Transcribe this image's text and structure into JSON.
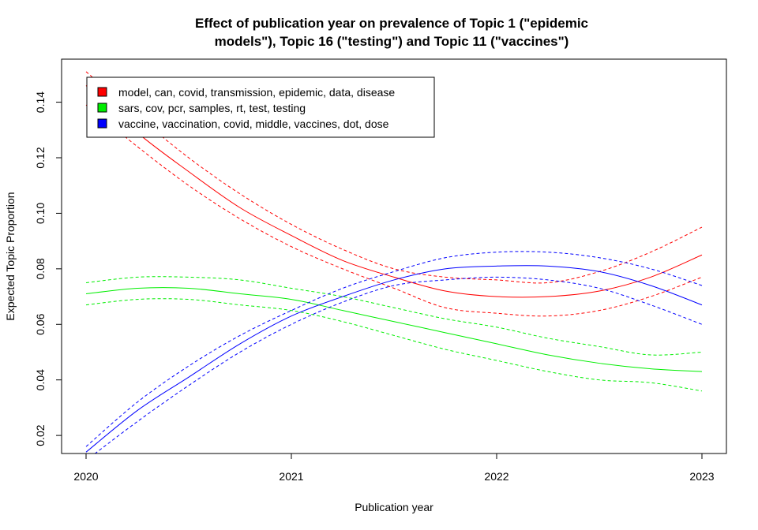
{
  "chart_data": {
    "type": "line",
    "title_lines": [
      "Effect of publication year on prevalence of Topic 1 (\"epidemic",
      "models\"), Topic 16 (\"testing\") and Topic 11 (\"vaccines\")"
    ],
    "xlabel": "Publication year",
    "ylabel": "Expected Topic Proportion",
    "xlim": [
      2020,
      2023
    ],
    "ylim": [
      0.0135,
      0.1555
    ],
    "x_ticks": [
      "2020",
      "2021",
      "2022",
      "2023"
    ],
    "y_ticks": [
      "0.02",
      "0.04",
      "0.06",
      "0.08",
      "0.10",
      "0.12",
      "0.14"
    ],
    "legend_position": "top-left",
    "series": [
      {
        "name": "model, can, covid, transmission, epidemic, data, disease",
        "color": "#ff0000",
        "x": [
          2020,
          2020.25,
          2020.5,
          2020.75,
          2021,
          2021.25,
          2021.5,
          2021.75,
          2022,
          2022.25,
          2022.5,
          2022.75,
          2023
        ],
        "y": [
          0.146,
          0.129,
          0.115,
          0.102,
          0.092,
          0.083,
          0.077,
          0.072,
          0.07,
          0.07,
          0.072,
          0.077,
          0.085
        ],
        "lower": [
          0.139,
          0.124,
          0.11,
          0.098,
          0.088,
          0.08,
          0.073,
          0.066,
          0.064,
          0.063,
          0.065,
          0.07,
          0.077
        ],
        "upper": [
          0.151,
          0.135,
          0.12,
          0.107,
          0.096,
          0.087,
          0.08,
          0.077,
          0.076,
          0.075,
          0.079,
          0.086,
          0.095
        ]
      },
      {
        "name": "sars, cov, pcr, samples, rt, test, testing",
        "color": "#00ee00",
        "x": [
          2020,
          2020.25,
          2020.5,
          2020.75,
          2021,
          2021.25,
          2021.5,
          2021.75,
          2022,
          2022.25,
          2022.5,
          2022.75,
          2023
        ],
        "y": [
          0.071,
          0.073,
          0.073,
          0.071,
          0.069,
          0.065,
          0.061,
          0.057,
          0.053,
          0.049,
          0.046,
          0.044,
          0.043
        ],
        "lower": [
          0.067,
          0.069,
          0.069,
          0.067,
          0.065,
          0.061,
          0.056,
          0.051,
          0.047,
          0.043,
          0.04,
          0.039,
          0.036
        ],
        "upper": [
          0.075,
          0.077,
          0.077,
          0.076,
          0.073,
          0.07,
          0.066,
          0.062,
          0.059,
          0.055,
          0.052,
          0.049,
          0.05
        ]
      },
      {
        "name": "vaccine, vaccination, covid, middle, vaccines, dot, dose",
        "color": "#0000ff",
        "x": [
          2020,
          2020.25,
          2020.5,
          2020.75,
          2021,
          2021.25,
          2021.5,
          2021.75,
          2022,
          2022.25,
          2022.5,
          2022.75,
          2023
        ],
        "y": [
          0.014,
          0.029,
          0.041,
          0.053,
          0.063,
          0.07,
          0.076,
          0.08,
          0.081,
          0.081,
          0.079,
          0.074,
          0.067
        ],
        "lower": [
          0.011,
          0.025,
          0.038,
          0.05,
          0.06,
          0.068,
          0.074,
          0.076,
          0.077,
          0.076,
          0.073,
          0.067,
          0.06
        ],
        "upper": [
          0.016,
          0.032,
          0.045,
          0.056,
          0.065,
          0.073,
          0.079,
          0.084,
          0.086,
          0.086,
          0.084,
          0.08,
          0.074
        ]
      }
    ]
  }
}
